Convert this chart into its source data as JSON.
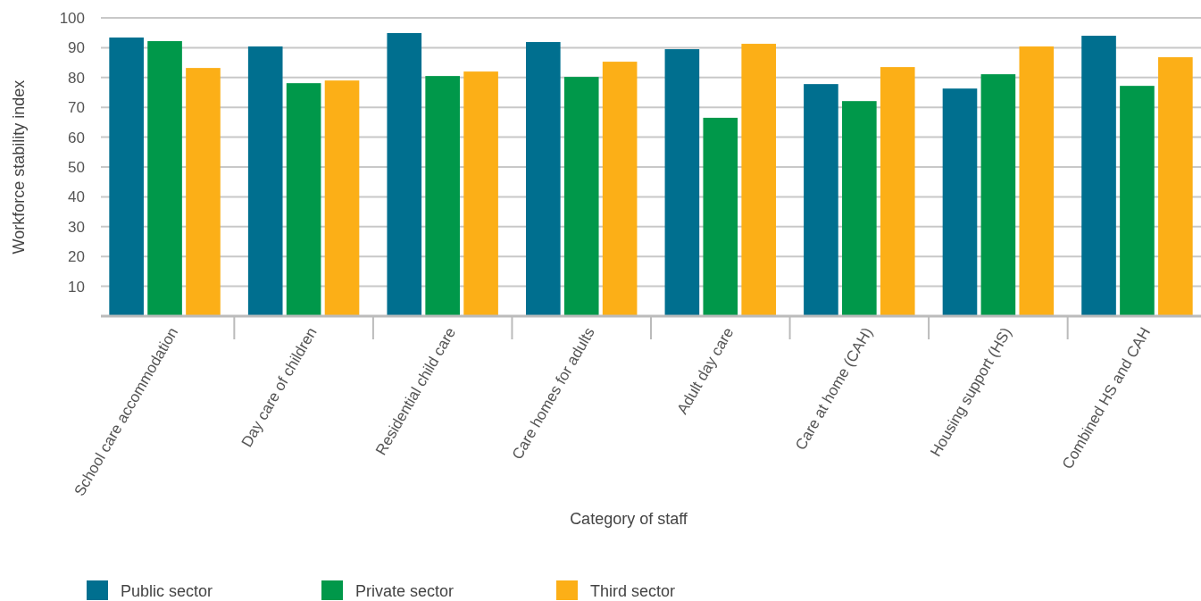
{
  "chart_data": {
    "type": "bar",
    "xlabel": "Category of staff",
    "ylabel": "Workforce stability index",
    "categories": [
      "School care accommodation",
      "Day care of children",
      "Residential child care",
      "Care homes for adults",
      "Adult day care",
      "Care at home (CAH)",
      "Housing support (HS)",
      "Combined HS and CAH"
    ],
    "series": [
      {
        "name": "Public sector",
        "color": "#006f8f",
        "values": [
          93.4,
          90.4,
          94.9,
          91.9,
          89.5,
          77.8,
          76.3,
          94.0
        ]
      },
      {
        "name": "Private sector",
        "color": "#00984a",
        "values": [
          92.2,
          78.1,
          80.5,
          80.2,
          66.5,
          72.1,
          81.1,
          77.2
        ]
      },
      {
        "name": "Third sector",
        "color": "#fcaf17",
        "values": [
          83.2,
          79.0,
          82.0,
          85.3,
          91.3,
          83.5,
          90.4,
          86.8
        ]
      }
    ],
    "ylim": [
      0,
      100
    ],
    "yticks": [
      10,
      20,
      30,
      40,
      50,
      60,
      70,
      80,
      90,
      100
    ],
    "grid": "y",
    "legend": "bottom left"
  }
}
